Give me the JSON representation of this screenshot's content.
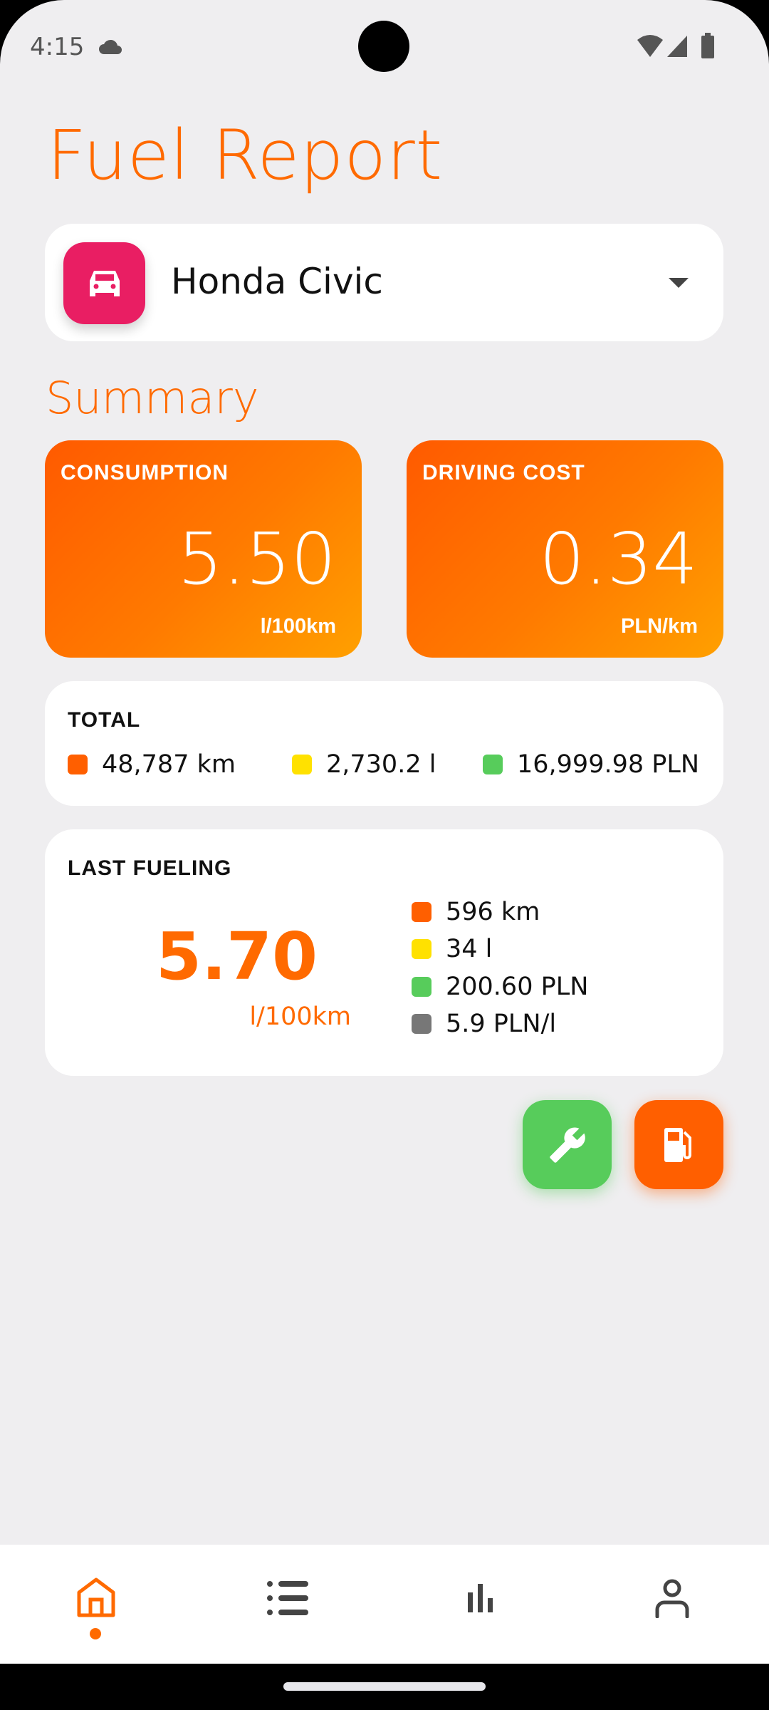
{
  "status_bar": {
    "time": "4:15",
    "icons": [
      "cloud-icon",
      "wifi-icon",
      "signal-icon",
      "battery-icon"
    ]
  },
  "header": {
    "title": "Fuel Report"
  },
  "vehicle_selector": {
    "selected": "Honda Civic",
    "icon": "car-icon",
    "icon_color": "#E91E63"
  },
  "summary": {
    "title": "Summary",
    "consumption": {
      "label": "CONSUMPTION",
      "value": "5.50",
      "unit": "l/100km"
    },
    "driving_cost": {
      "label": "DRIVING COST",
      "value": "0.34",
      "unit": "PLN/km"
    }
  },
  "total": {
    "label": "TOTAL",
    "items": [
      {
        "value": "48,787 km",
        "color": "#FF5F00"
      },
      {
        "value": "2,730.2 l",
        "color": "#FFE100"
      },
      {
        "value": "16,999.98 PLN",
        "color": "#57CC5B"
      }
    ]
  },
  "last_fueling": {
    "label": "LAST FUELING",
    "value": "5.70",
    "unit": "l/100km",
    "items": [
      {
        "value": "596 km",
        "color": "#FF5F00"
      },
      {
        "value": "34 l",
        "color": "#FFE100"
      },
      {
        "value": "200.60 PLN",
        "color": "#57CC5B"
      },
      {
        "value": "5.9 PLN/l",
        "color": "#777777"
      }
    ]
  },
  "fabs": {
    "service": {
      "icon": "wrench-icon",
      "color": "#57CC5B"
    },
    "fuel": {
      "icon": "fuel-pump-icon",
      "color": "#FF5F00"
    }
  },
  "bottom_nav": {
    "items": [
      "home-icon",
      "list-icon",
      "chart-icon",
      "profile-icon"
    ],
    "active": "home-icon",
    "accent": "#FF6A00"
  }
}
